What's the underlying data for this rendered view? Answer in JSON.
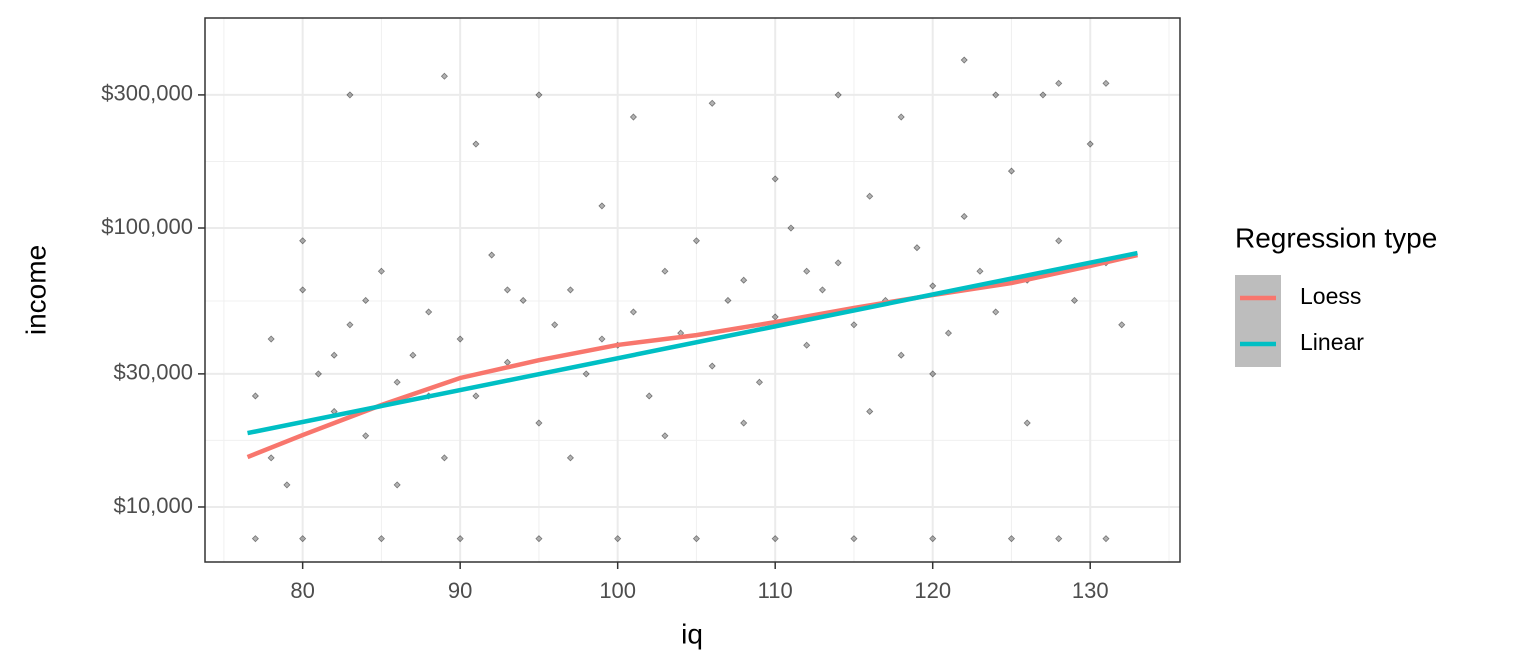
{
  "chart_data": {
    "type": "scatter",
    "x_label": "iq",
    "y_label": "income",
    "legend_title": "Regression type",
    "legend_position": "right",
    "log_y": true,
    "grid": true,
    "minor_grid": true,
    "xlim": [
      73.8,
      135.7
    ],
    "ylim": [
      6350,
      566000
    ],
    "xticks": [
      80,
      90,
      100,
      110,
      120,
      130
    ],
    "yticks": [
      {
        "value": 10000,
        "label": "$10,000"
      },
      {
        "value": 30000,
        "label": "$30,000"
      },
      {
        "value": 100000,
        "label": "$100,000"
      },
      {
        "value": 300000,
        "label": "$300,000"
      }
    ],
    "points": {
      "color": "#000000",
      "x": [
        77,
        78,
        79,
        80,
        81,
        82,
        83,
        84,
        85,
        86,
        87,
        88,
        89,
        90,
        91,
        92,
        93,
        94,
        95,
        96,
        97,
        98,
        99,
        100,
        101,
        102,
        103,
        104,
        105,
        106,
        107,
        108,
        109,
        110,
        111,
        112,
        113,
        114,
        115,
        116,
        117,
        118,
        119,
        120,
        121,
        122,
        123,
        124,
        125,
        126,
        127,
        128,
        129,
        130,
        131,
        132,
        78,
        80,
        82,
        83,
        84,
        86,
        88,
        89,
        91,
        93,
        95,
        97,
        99,
        101,
        103,
        106,
        108,
        110,
        112,
        114,
        116,
        118,
        120,
        122,
        124,
        126,
        128,
        131,
        77,
        80,
        85,
        90,
        95,
        100,
        105,
        110,
        115,
        120,
        125,
        128,
        131
      ],
      "y": [
        25000,
        40000,
        12000,
        60000,
        30000,
        22000,
        45000,
        18000,
        70000,
        28000,
        35000,
        50000,
        15000,
        40000,
        25000,
        80000,
        33000,
        55000,
        20000,
        45000,
        60000,
        30000,
        120000,
        38000,
        50000,
        25000,
        70000,
        42000,
        90000,
        32000,
        55000,
        65000,
        28000,
        48000,
        100000,
        38000,
        60000,
        75000,
        45000,
        130000,
        55000,
        35000,
        85000,
        62000,
        42000,
        110000,
        70000,
        50000,
        160000,
        65000,
        300000,
        90000,
        55000,
        200000,
        75000,
        45000,
        15000,
        90000,
        35000,
        300000,
        55000,
        12000,
        25000,
        350000,
        200000,
        60000,
        300000,
        15000,
        40000,
        250000,
        18000,
        280000,
        20000,
        150000,
        70000,
        300000,
        22000,
        250000,
        30000,
        400000,
        300000,
        20000,
        330000,
        330000,
        7700,
        7700,
        7700,
        7700,
        7700,
        7700,
        7700,
        7700,
        7700,
        7700,
        7700,
        7700,
        7700
      ]
    },
    "series": [
      {
        "name": "Loess",
        "color": "#f8766d",
        "x": [
          76.5,
          80,
          85,
          90,
          95,
          100,
          105,
          110,
          115,
          120,
          125,
          130,
          133
        ],
        "values": [
          15100,
          18100,
          23200,
          29000,
          33600,
          38100,
          41300,
          46000,
          51700,
          57500,
          63500,
          73100,
          80000
        ]
      },
      {
        "name": "Linear",
        "color": "#00bfc4",
        "x": [
          76.5,
          133
        ],
        "values": [
          18400,
          81300
        ]
      }
    ]
  }
}
